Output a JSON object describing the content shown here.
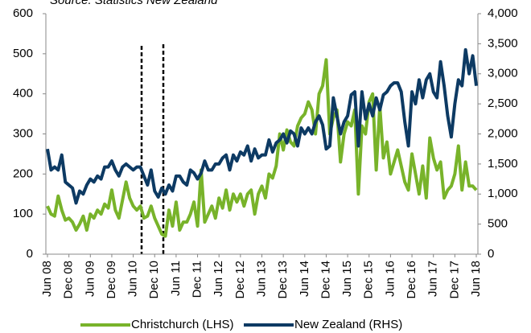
{
  "chart_data": {
    "type": "line",
    "subtitle": "Source: Statistics New Zealand",
    "categories": [
      "Jun 08",
      null,
      null,
      null,
      null,
      null,
      "Dec 08",
      null,
      null,
      null,
      null,
      null,
      "Jun 09",
      null,
      null,
      null,
      null,
      null,
      "Dec 09",
      null,
      null,
      null,
      null,
      null,
      "Jun 10",
      null,
      null,
      null,
      null,
      null,
      "Dec 10",
      null,
      null,
      null,
      null,
      null,
      "Jun 11",
      null,
      null,
      null,
      null,
      null,
      "Dec 11",
      null,
      null,
      null,
      null,
      null,
      "Jun 12",
      null,
      null,
      null,
      null,
      null,
      "Dec 12",
      null,
      null,
      null,
      null,
      null,
      "Jun 13",
      null,
      null,
      null,
      null,
      null,
      "Dec 13",
      null,
      null,
      null,
      null,
      null,
      "Jun 14",
      null,
      null,
      null,
      null,
      null,
      "Dec 14",
      null,
      null,
      null,
      null,
      null,
      "Jun 15",
      null,
      null,
      null,
      null,
      null,
      "Dec 15",
      null,
      null,
      null,
      null,
      null,
      "Jun 16",
      null,
      null,
      null,
      null,
      null,
      "Dec 16",
      null,
      null,
      null,
      null,
      null,
      "Jun 17",
      null,
      null,
      null,
      null,
      null,
      "Dec 17",
      null,
      null,
      null,
      null,
      null,
      "Jun 18"
    ],
    "series": [
      {
        "name": "Christchurch (LHS)",
        "color": "#78b32a",
        "axis": "y",
        "values": [
          120,
          100,
          95,
          145,
          110,
          85,
          90,
          80,
          60,
          75,
          95,
          60,
          100,
          90,
          110,
          100,
          125,
          115,
          160,
          110,
          90,
          135,
          180,
          140,
          120,
          110,
          120,
          90,
          95,
          120,
          90,
          70,
          50,
          45,
          110,
          70,
          130,
          60,
          80,
          80,
          100,
          130,
          70,
          210,
          80,
          100,
          120,
          90,
          140,
          115,
          160,
          110,
          150,
          130,
          150,
          120,
          150,
          160,
          100,
          150,
          170,
          140,
          200,
          190,
          220,
          300,
          260,
          310,
          280,
          270,
          320,
          340,
          350,
          380,
          360,
          300,
          400,
          420,
          485,
          300,
          340,
          360,
          230,
          300,
          330,
          320,
          360,
          150,
          320,
          300,
          380,
          400,
          210,
          370,
          240,
          280,
          200,
          230,
          260,
          220,
          180,
          160,
          250,
          200,
          150,
          220,
          140,
          290,
          240,
          210,
          230,
          140,
          160,
          170,
          200,
          270,
          160,
          230,
          170,
          170,
          160
        ]
      },
      {
        "name": "New Zealand (RHS)",
        "color": "#0d3a63",
        "axis": "y2",
        "values": [
          1750,
          1400,
          1450,
          1400,
          1650,
          1200,
          1150,
          1100,
          850,
          1050,
          1000,
          1150,
          1250,
          1200,
          1300,
          1250,
          1450,
          1450,
          1550,
          1400,
          1300,
          1450,
          1500,
          1450,
          1400,
          1450,
          1450,
          1300,
          1150,
          1400,
          1050,
          950,
          1100,
          1000,
          1150,
          1050,
          1300,
          1300,
          1200,
          1150,
          1400,
          1350,
          1250,
          1350,
          1550,
          1400,
          1400,
          1500,
          1500,
          1600,
          1650,
          1400,
          1650,
          1550,
          1700,
          1650,
          1800,
          1550,
          1750,
          1600,
          1650,
          1650,
          1900,
          1700,
          1850,
          1900,
          2000,
          1850,
          2050,
          2000,
          1800,
          2100,
          2000,
          2100,
          2000,
          2200,
          2300,
          2150,
          1750,
          1800,
          2600,
          2300,
          2000,
          2200,
          2300,
          2650,
          2700,
          1800,
          2700,
          2250,
          2500,
          2300,
          2600,
          2400,
          2650,
          2700,
          2800,
          2850,
          2850,
          2700,
          2200,
          1800,
          2700,
          2500,
          2900,
          2600,
          2900,
          3000,
          2700,
          2600,
          3200,
          2800,
          2300,
          1950,
          2500,
          2900,
          2800,
          3400,
          3000,
          3300,
          2800
        ]
      }
    ],
    "ylim": [
      0,
      600
    ],
    "yticks": [
      0,
      100,
      200,
      300,
      400,
      500,
      600
    ],
    "y2lim": [
      0,
      4000
    ],
    "y2ticks": [
      0,
      500,
      {
        "value": 1000,
        "label": "1,000"
      },
      {
        "value": 1500,
        "label": "1,500"
      },
      {
        "value": 2000,
        "label": "2,000"
      },
      {
        "value": 2500,
        "label": "2,500"
      },
      {
        "value": 3000,
        "label": "3,000"
      },
      {
        "value": 3500,
        "label": "3,500"
      },
      {
        "value": 4000,
        "label": "4,000"
      }
    ],
    "grid": false
  }
}
